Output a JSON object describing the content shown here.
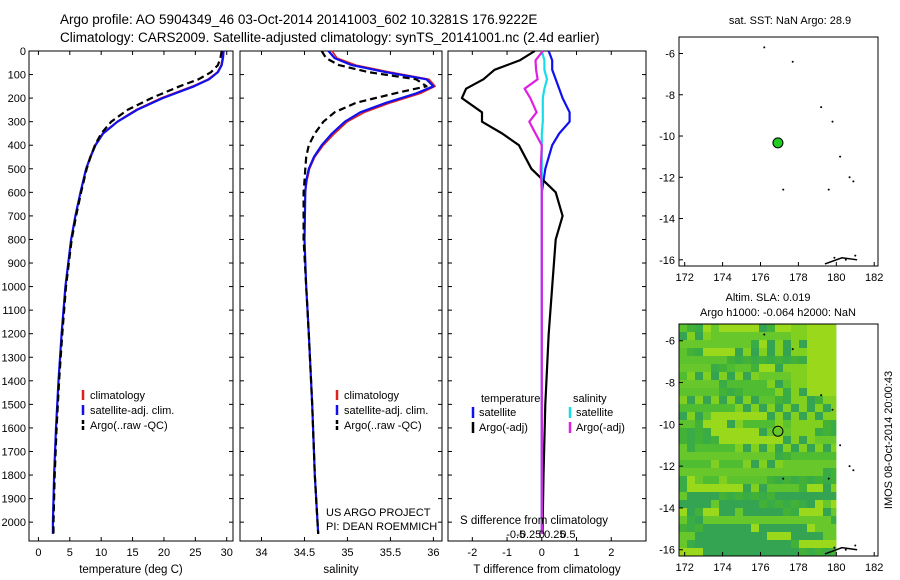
{
  "header": {
    "line1": "Argo profile: AO 5904349_46 03-Oct-2014 20141003_602 10.3281S 176.9222E",
    "line2": "Climatology: CARS2009. Satellite-adjusted climatology: synTS_20141001.nc (2.4d earlier)"
  },
  "colors": {
    "climatology": "#e02020",
    "satellite": "#1010ee",
    "argo": "#000000",
    "sal_satellite": "#18dde8",
    "sal_argo": "#e020e0",
    "green_marker": "#22cc22"
  },
  "chart_data": [
    {
      "type": "line",
      "name": "temperature-profile",
      "xlabel": "temperature (deg C)",
      "ylabel": "",
      "xlim": [
        -1.5,
        31
      ],
      "ylim": [
        2080,
        0
      ],
      "xticks": [
        0,
        5,
        10,
        15,
        20,
        25,
        30
      ],
      "yticks": [
        0,
        100,
        200,
        300,
        400,
        500,
        600,
        700,
        800,
        900,
        1000,
        1100,
        1200,
        1300,
        1400,
        1500,
        1600,
        1700,
        1800,
        1900,
        2000
      ],
      "legend": [
        "climatology",
        "satellite-adj. clim.",
        "Argo(..raw -QC)"
      ],
      "depth": [
        0,
        30,
        60,
        90,
        120,
        150,
        200,
        250,
        300,
        350,
        400,
        450,
        500,
        600,
        700,
        800,
        1000,
        1200,
        1400,
        1600,
        1800,
        2000,
        2050
      ],
      "series": [
        {
          "name": "climatology",
          "values": [
            29.4,
            29.3,
            29.1,
            28.5,
            27.0,
            24.5,
            19.5,
            15.5,
            12.5,
            10.2,
            9.0,
            8.2,
            7.6,
            6.7,
            5.9,
            5.2,
            4.3,
            3.7,
            3.2,
            2.8,
            2.5,
            2.3,
            2.3
          ]
        },
        {
          "name": "satellite",
          "values": [
            29.5,
            29.4,
            29.2,
            28.6,
            27.2,
            24.8,
            19.8,
            15.7,
            12.6,
            10.3,
            9.1,
            8.3,
            7.6,
            6.7,
            5.9,
            5.2,
            4.3,
            3.7,
            3.2,
            2.8,
            2.5,
            2.3,
            2.3
          ]
        },
        {
          "name": "argo",
          "values": [
            29.2,
            29.0,
            28.6,
            27.5,
            25.5,
            22.5,
            18.0,
            14.2,
            11.6,
            10.0,
            9.0,
            8.3,
            7.7,
            6.8,
            6.0,
            5.3,
            4.4,
            3.8,
            3.3,
            2.9,
            2.6,
            2.4,
            2.4
          ]
        }
      ]
    },
    {
      "type": "line",
      "name": "salinity-profile",
      "xlabel": "salinity",
      "xlim": [
        33.75,
        36.1
      ],
      "ylim": [
        2080,
        0
      ],
      "xticks": [
        34,
        34.5,
        35,
        35.5,
        36
      ],
      "legend": [
        "climatology",
        "satellite-adj. clim.",
        "Argo(..raw -QC)"
      ],
      "depth": [
        0,
        30,
        60,
        90,
        120,
        150,
        180,
        220,
        260,
        300,
        350,
        400,
        450,
        500,
        550,
        600,
        800,
        1000,
        1200,
        1500,
        1800,
        2050
      ],
      "series": [
        {
          "name": "climatology",
          "values": [
            34.82,
            34.88,
            35.1,
            35.5,
            35.95,
            36.02,
            35.85,
            35.5,
            35.2,
            35.0,
            34.85,
            34.72,
            34.62,
            34.56,
            34.53,
            34.51,
            34.5,
            34.52,
            34.55,
            34.59,
            34.62,
            34.66
          ]
        },
        {
          "name": "satellite",
          "values": [
            34.78,
            34.85,
            35.05,
            35.45,
            35.92,
            36.0,
            35.8,
            35.45,
            35.15,
            34.97,
            34.82,
            34.7,
            34.61,
            34.55,
            34.52,
            34.51,
            34.5,
            34.52,
            34.55,
            34.59,
            34.62,
            34.66
          ]
        },
        {
          "name": "argo",
          "values": [
            34.7,
            34.75,
            34.9,
            35.25,
            35.8,
            35.92,
            35.55,
            35.1,
            34.85,
            34.72,
            34.62,
            34.55,
            34.52,
            34.51,
            34.5,
            34.49,
            34.49,
            34.52,
            34.55,
            34.59,
            34.62,
            34.66
          ]
        }
      ],
      "annotation": [
        "US ARGO PROJECT",
        "PI: DEAN ROEMMICH"
      ]
    },
    {
      "type": "line",
      "name": "difference-profile",
      "xlabel": "T difference from climatology",
      "xlabel_top": "S difference from climatology",
      "xlim": [
        -2.7,
        3
      ],
      "ylim": [
        2080,
        0
      ],
      "xticks": [
        -2,
        -1,
        0,
        1,
        2
      ],
      "xtick_labels": [
        "-2",
        "-1",
        "0",
        "1",
        "2"
      ],
      "sticks": [
        -0.5,
        -0.25,
        0,
        0.25,
        0.5
      ],
      "stick_labels": [
        "-0.5",
        "-0.25",
        "0",
        "0.25",
        "0.5"
      ],
      "legend_temperature": [
        "temperature",
        "satellite",
        "Argo(-adj)"
      ],
      "legend_salinity": [
        "salinity",
        "satellite",
        "Argo(-adj)"
      ],
      "depth": [
        0,
        40,
        80,
        120,
        160,
        200,
        260,
        300,
        350,
        400,
        500,
        600,
        700,
        800,
        1000,
        1200,
        1500,
        1800,
        2050
      ],
      "series": [
        {
          "name": "T satellite",
          "values": [
            0.2,
            0.3,
            0.3,
            0.4,
            0.5,
            0.6,
            0.8,
            0.8,
            0.5,
            0.3,
            0.1,
            0.0,
            0.0,
            0.0,
            0.0,
            0.0,
            0.0,
            0.0,
            0.0
          ]
        },
        {
          "name": "T argo",
          "values": [
            -0.2,
            -0.6,
            -1.4,
            -1.8,
            -2.1,
            -2.3,
            -1.8,
            -1.6,
            -1.1,
            -0.7,
            -0.3,
            0.4,
            0.6,
            0.4,
            0.3,
            0.2,
            0.1,
            0.05,
            0.02
          ]
        },
        {
          "name": "S satellite",
          "values": [
            0.0,
            0.05,
            0.05,
            0.1,
            0.05,
            0.02,
            0.02,
            0.02,
            0.0,
            0.0,
            0.0,
            0.0,
            0.0,
            0.0,
            0.0,
            0.0,
            0.0,
            0.0,
            0.0
          ]
        },
        {
          "name": "S argo",
          "values": [
            0.02,
            -0.08,
            -0.15,
            -0.2,
            -0.25,
            -0.22,
            -0.18,
            -0.12,
            -0.08,
            -0.04,
            -0.02,
            0.0,
            0.0,
            0.0,
            0.0,
            0.0,
            0.0,
            0.0,
            0.0
          ]
        }
      ]
    },
    {
      "type": "scatter",
      "name": "sst-map",
      "title": "sat. SST: NaN Argo: 28.9",
      "xlim": [
        171.7,
        182.2
      ],
      "ylim": [
        -16.3,
        -5.2
      ],
      "xticks": [
        172,
        174,
        176,
        178,
        180,
        182
      ],
      "yticks": [
        -6,
        -8,
        -10,
        -12,
        -14,
        -16
      ],
      "argo_position": {
        "lon": 176.92,
        "lat": -10.33
      },
      "islands": [
        [
          176.2,
          -5.7
        ],
        [
          177.7,
          -6.4
        ],
        [
          179.2,
          -8.6
        ],
        [
          179.8,
          -9.3
        ],
        [
          180.2,
          -11.0
        ],
        [
          180.7,
          -12.0
        ],
        [
          180.9,
          -12.2
        ],
        [
          179.6,
          -12.6
        ],
        [
          177.2,
          -12.6
        ],
        [
          179.9,
          -15.9
        ],
        [
          180.5,
          -16.0
        ],
        [
          181.0,
          -15.8
        ]
      ]
    },
    {
      "type": "heatmap",
      "name": "sla-map",
      "title_line1": "Altim. SLA: 0.019",
      "title_line2": "Argo h1000: -0.064 h2000: NaN",
      "xlim": [
        171.7,
        182.2
      ],
      "ylim": [
        -16.3,
        -5.2
      ],
      "xticks": [
        172,
        174,
        176,
        178,
        180,
        182
      ],
      "yticks": [
        -6,
        -8,
        -10,
        -12,
        -14,
        -16
      ],
      "argo_position": {
        "lon": 176.92,
        "lat": -10.33
      },
      "data_extent_lon": [
        171.7,
        180.0
      ]
    }
  ],
  "side_label": "IMOS 08-Oct-2014 20:00:43"
}
